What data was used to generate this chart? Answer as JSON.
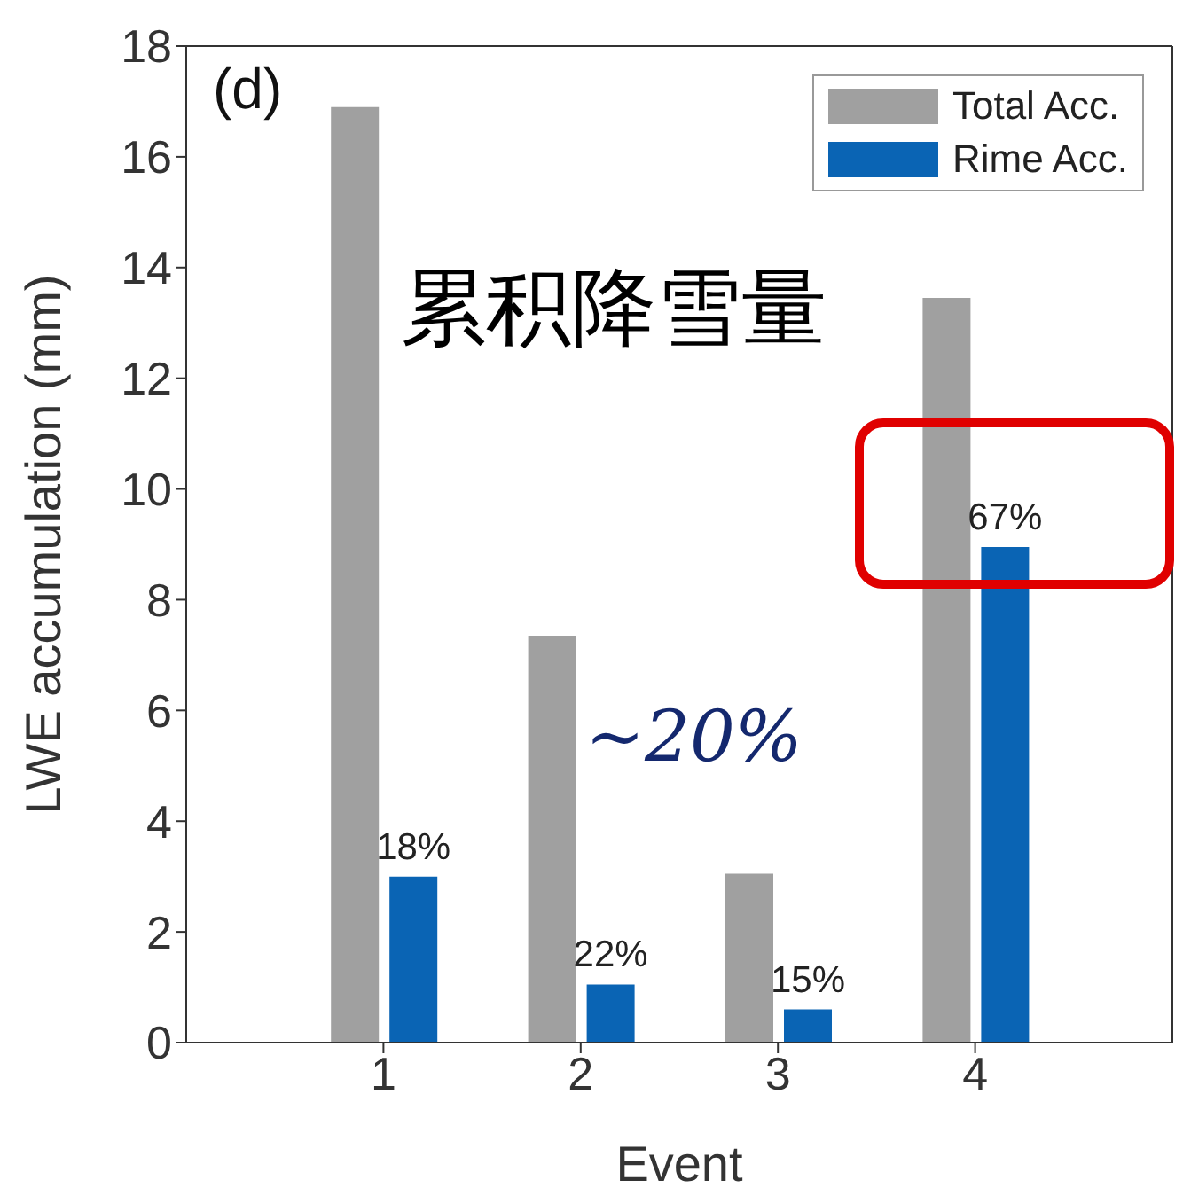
{
  "chart_data": {
    "type": "bar",
    "xlabel": "Event",
    "ylabel": "LWE accumulation (mm)",
    "x": [
      1,
      2,
      3,
      4
    ],
    "xlim": [
      0,
      5
    ],
    "xticks": [
      1,
      2,
      3,
      4
    ],
    "ylim": [
      0,
      18
    ],
    "yticks": [
      0,
      2,
      4,
      6,
      8,
      10,
      12,
      14,
      16,
      18
    ],
    "grid": false,
    "legend": "top right",
    "series": [
      {
        "name": "Total Acc.",
        "color": "#a0a0a0",
        "values": [
          16.9,
          7.35,
          3.05,
          13.45
        ]
      },
      {
        "name": "Rime Acc.",
        "color": "#0a64b4",
        "values": [
          3.0,
          1.05,
          0.6,
          8.95
        ]
      }
    ],
    "annotations": [
      "(d)",
      "累积降雪量",
      "∼20%",
      {
        "text": "18%",
        "x": 1,
        "y": 3.0
      },
      {
        "text": "22%",
        "x": 2,
        "y": 1.05
      },
      {
        "text": "15%",
        "x": 3,
        "y": 0.6
      },
      {
        "text": "67%",
        "x": 4,
        "y": 8.95
      }
    ]
  }
}
